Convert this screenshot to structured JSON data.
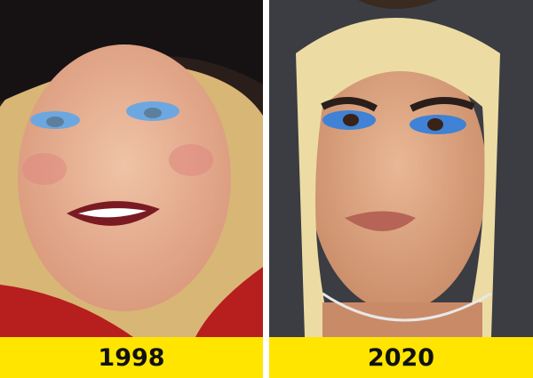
{
  "panels": [
    {
      "year": "1998"
    },
    {
      "year": "2020"
    }
  ],
  "colors": {
    "caption_bg": "#ffe500",
    "eyeshadow": "#4a8fd6"
  }
}
